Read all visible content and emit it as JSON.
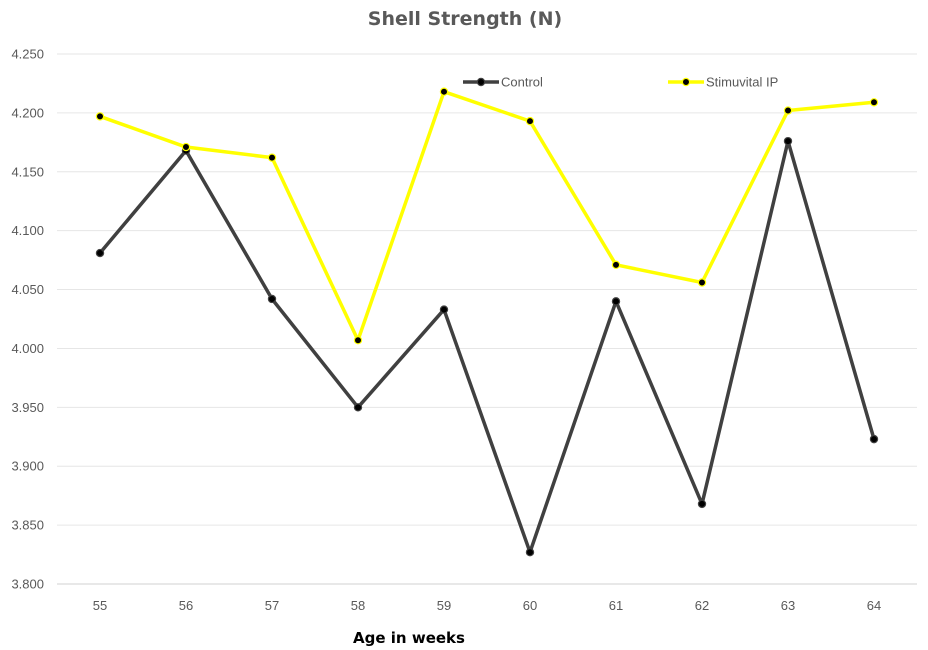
{
  "chart_data": {
    "type": "line",
    "title": "Shell Strength (N)",
    "xlabel": "Age in weeks",
    "ylabel": "",
    "categories": [
      "55",
      "56",
      "57",
      "58",
      "59",
      "60",
      "61",
      "62",
      "63",
      "64"
    ],
    "ylim": [
      3.8,
      4.25
    ],
    "yticks": [
      "3.800",
      "3.850",
      "3.900",
      "3.950",
      "4.000",
      "4.050",
      "4.100",
      "4.150",
      "4.200",
      "4.250"
    ],
    "grid": "horizontal",
    "legend": "top",
    "series": [
      {
        "name": "Control",
        "color": "#404040",
        "values": [
          4.081,
          4.168,
          4.042,
          3.95,
          4.033,
          3.827,
          4.04,
          3.868,
          4.176,
          3.923
        ]
      },
      {
        "name": "Stimuvital IP",
        "color": "#FFFF00",
        "values": [
          4.197,
          4.171,
          4.162,
          4.007,
          4.218,
          4.193,
          4.071,
          4.056,
          4.202,
          4.209
        ]
      }
    ]
  }
}
